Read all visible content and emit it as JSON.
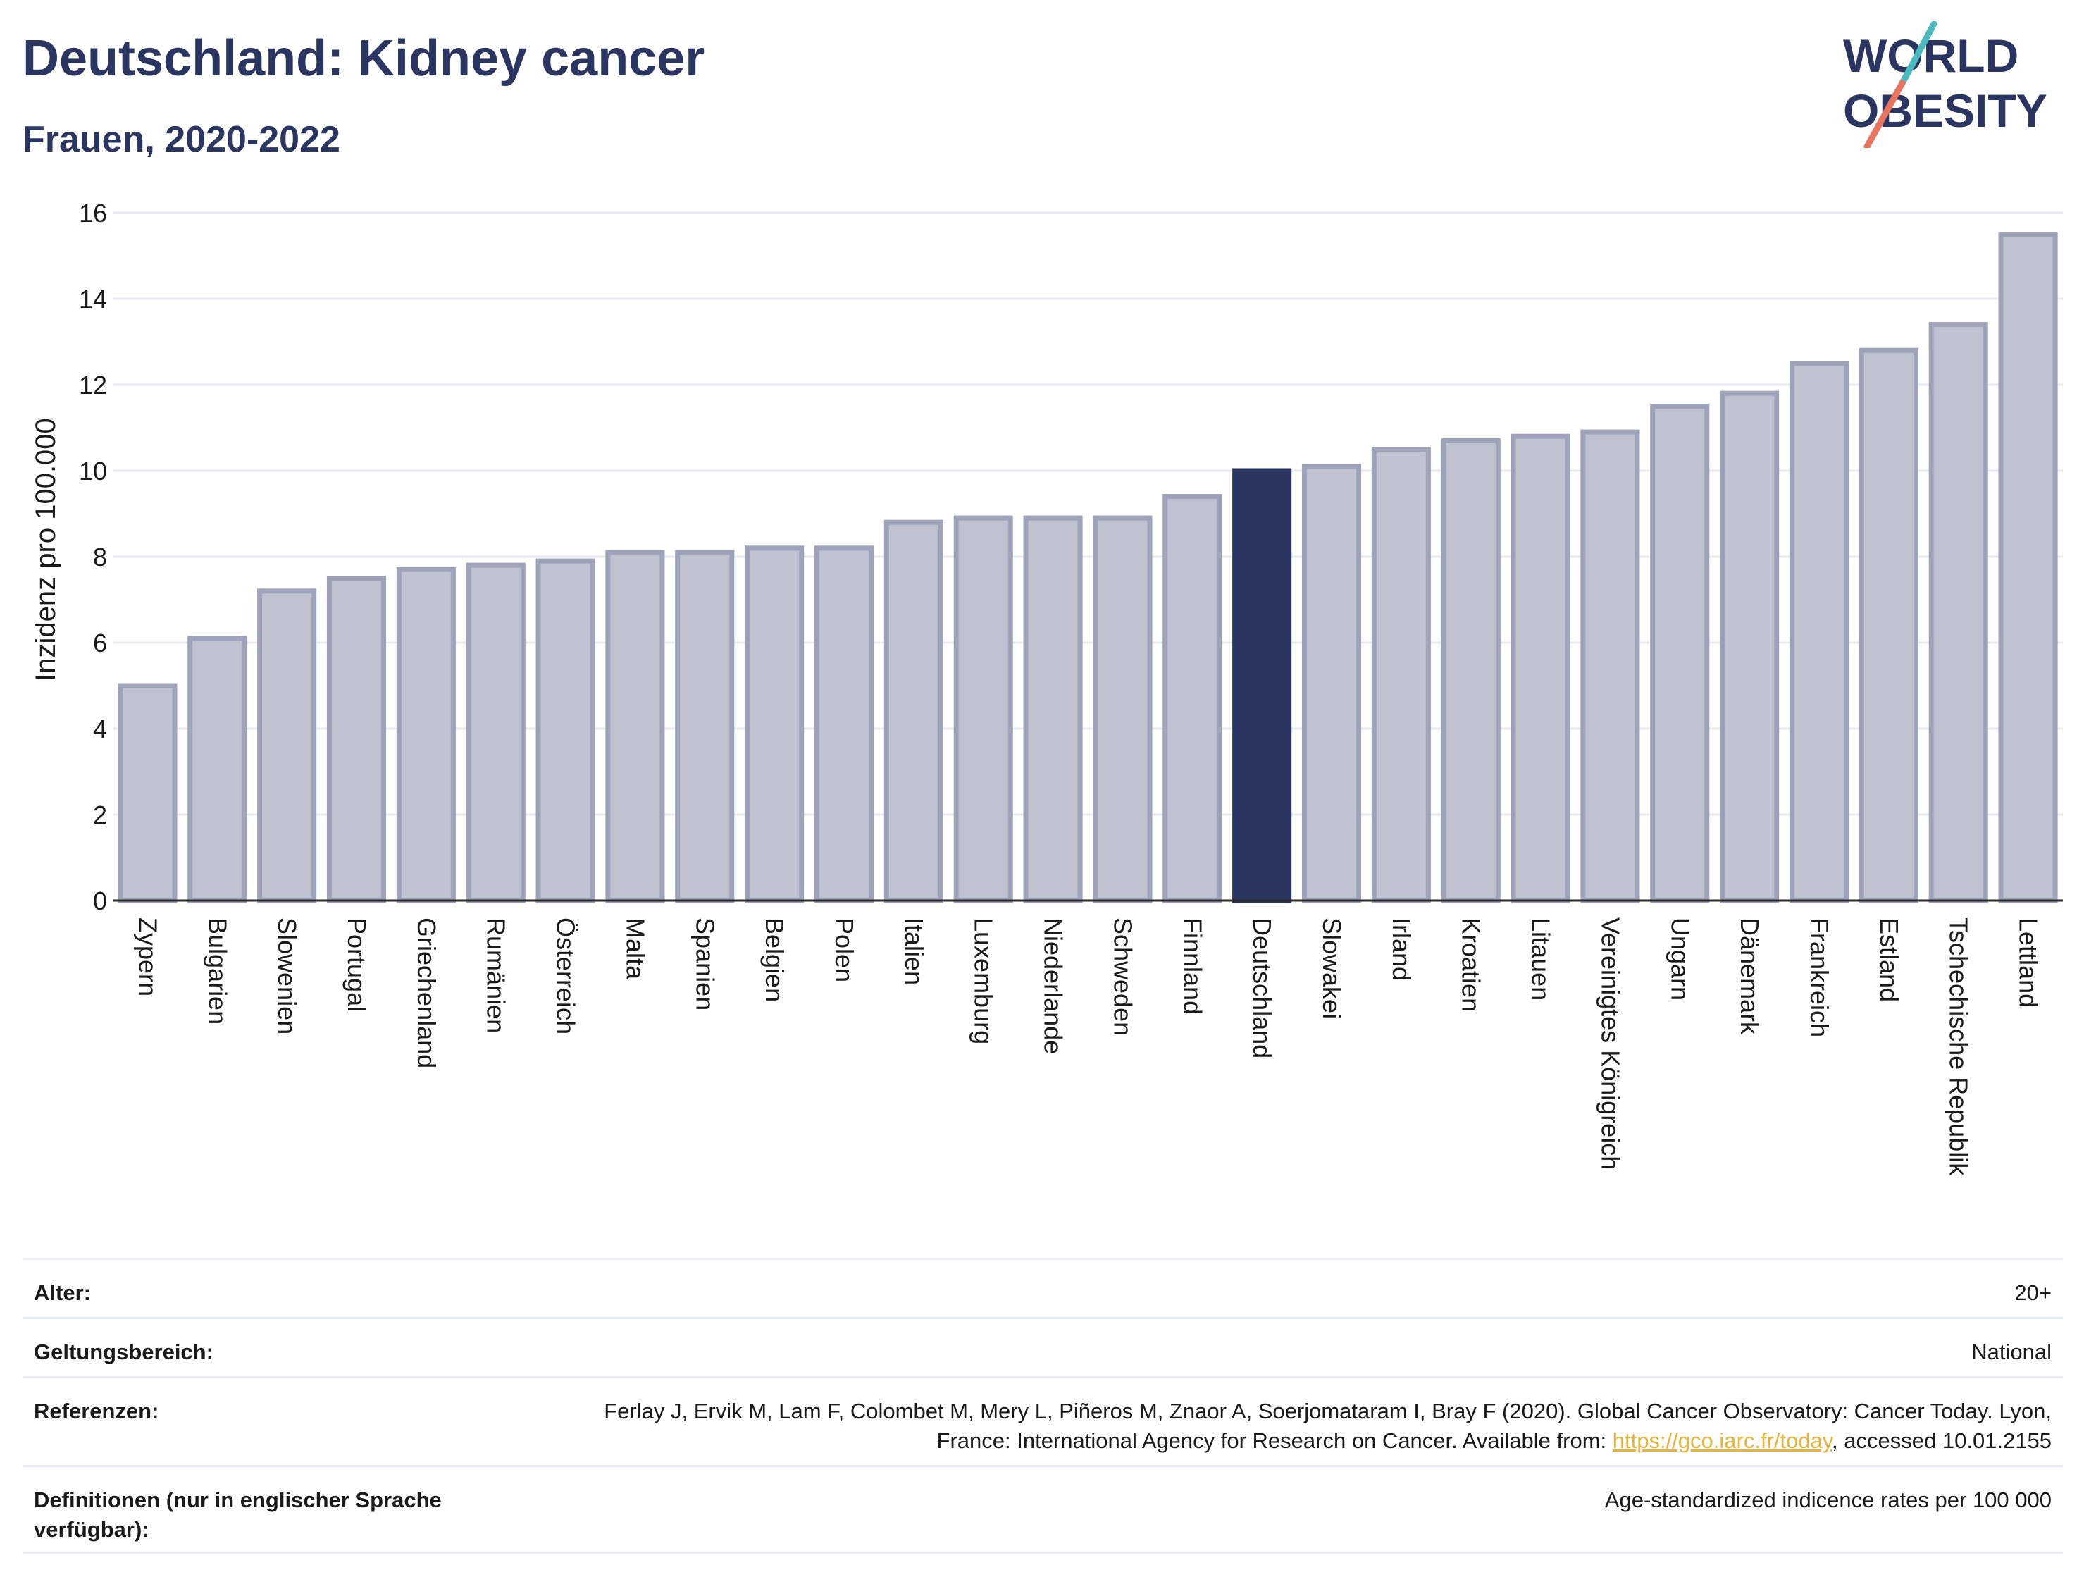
{
  "title": "Deutschland: Kidney cancer",
  "subtitle": "Frauen, 2020-2022",
  "logo": {
    "line1": "WORLD",
    "line2": "OBESITY"
  },
  "colors": {
    "highlight": "#2b3561",
    "bar_fill": "#bfc2d0",
    "bar_stroke": "#9ea3ba",
    "accent_teal": "#4bb9bd",
    "accent_red": "#e8735f"
  },
  "chart_data": {
    "type": "bar",
    "ylabel": "Inzidenz pro 100.000",
    "ylim": [
      0,
      16
    ],
    "yticks": [
      0,
      2,
      4,
      6,
      8,
      10,
      12,
      14,
      16
    ],
    "grid": true,
    "highlight_category": "Deutschland",
    "categories": [
      "Zypern",
      "Bulgarien",
      "Slowenien",
      "Portugal",
      "Griechenland",
      "Rumänien",
      "Österreich",
      "Malta",
      "Spanien",
      "Belgien",
      "Polen",
      "Italien",
      "Luxemburg",
      "Niederlande",
      "Schweden",
      "Finnland",
      "Deutschland",
      "Slowakei",
      "Irland",
      "Kroatien",
      "Litauen",
      "Vereinigtes Königreich",
      "Ungarn",
      "Dänemark",
      "Frankreich",
      "Estland",
      "Tschechische Republik",
      "Lettland"
    ],
    "values": [
      5.0,
      6.1,
      7.2,
      7.5,
      7.7,
      7.8,
      7.9,
      8.1,
      8.1,
      8.2,
      8.2,
      8.8,
      8.9,
      8.9,
      8.9,
      9.4,
      10.0,
      10.1,
      10.5,
      10.7,
      10.8,
      10.9,
      11.5,
      11.8,
      12.5,
      12.8,
      13.4,
      15.5
    ]
  },
  "meta": [
    {
      "label": "Alter:",
      "value": "20+"
    },
    {
      "label": "Geltungsbereich:",
      "value": "National"
    },
    {
      "label": "Referenzen:",
      "value_pre": "Ferlay J, Ervik M, Lam F, Colombet M, Mery L, Piñeros M, Znaor A, Soerjomataram I, Bray F (2020). Global Cancer Observatory: Cancer Today. Lyon, France: International Agency for Research on Cancer. Available from: ",
      "link": "https://gco.iarc.fr/today",
      "value_post": ", accessed 10.01.2155"
    },
    {
      "label": "Definitionen (nur in englischer Sprache verfügbar):",
      "value": "Age-standardized indicence rates per 100 000"
    }
  ]
}
